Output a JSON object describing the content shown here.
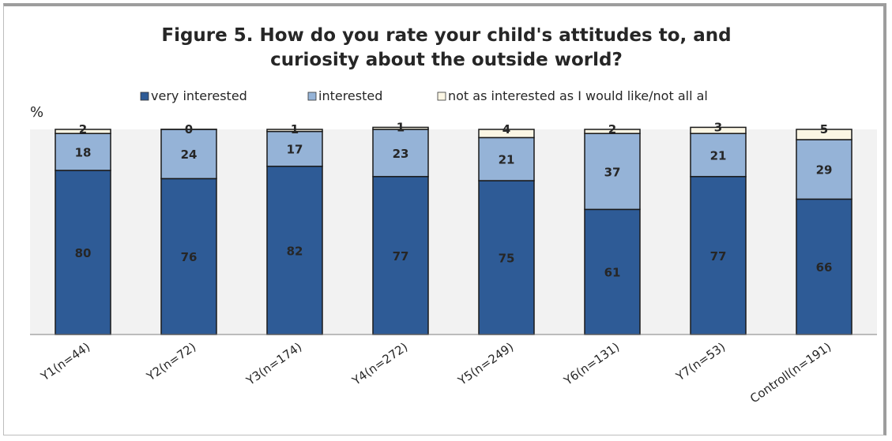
{
  "chart_data": {
    "type": "bar",
    "stacked": true,
    "title": "Figure 5. How do you rate your child's attitudes to, and curiosity about the outside world?",
    "title_lines": [
      "Figure 5. How do you rate your child's attitudes to, and",
      "curiosity about the outside world?"
    ],
    "ylabel": "%",
    "ylim": [
      0,
      100
    ],
    "legend_position": "top",
    "categories": [
      "Y1(n=44)",
      "Y2(n=72)",
      "Y3(n=174)",
      "Y4(n=272)",
      "Y5(n=249)",
      "Y6(n=131)",
      "Y7(n=53)",
      "Controll(n=191)"
    ],
    "series": [
      {
        "name": "very interested",
        "color": "#2e5b96",
        "values": [
          80,
          76,
          82,
          77,
          75,
          61,
          77,
          66
        ]
      },
      {
        "name": "interested",
        "color": "#95b3d7",
        "values": [
          18,
          24,
          17,
          23,
          21,
          37,
          21,
          29
        ]
      },
      {
        "name": "not as interested as I would like/not all al",
        "color": "#fbf6e4",
        "values": [
          2,
          0,
          1,
          1,
          4,
          2,
          3,
          5
        ]
      }
    ],
    "grid": false,
    "plot_background": "#f2f2f2"
  }
}
